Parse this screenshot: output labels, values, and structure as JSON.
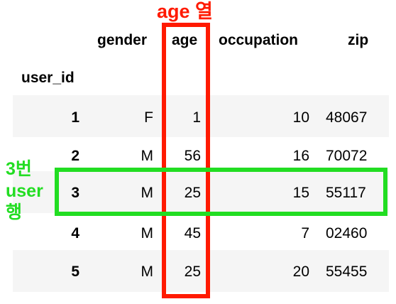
{
  "annotations": {
    "age_column": "age 열",
    "row_label": [
      "3번",
      "user",
      "행"
    ]
  },
  "colors": {
    "column_highlight": "#ff1a00",
    "row_highlight": "#22dd22",
    "stripe": "#f5f5f5"
  },
  "table": {
    "index_name": "user_id",
    "columns": [
      "gender",
      "age",
      "occupation",
      "zip"
    ],
    "rows": [
      {
        "user_id": "1",
        "gender": "F",
        "age": "1",
        "occupation": "10",
        "zip": "48067"
      },
      {
        "user_id": "2",
        "gender": "M",
        "age": "56",
        "occupation": "16",
        "zip": "70072"
      },
      {
        "user_id": "3",
        "gender": "M",
        "age": "25",
        "occupation": "15",
        "zip": "55117"
      },
      {
        "user_id": "4",
        "gender": "M",
        "age": "45",
        "occupation": "7",
        "zip": "02460"
      },
      {
        "user_id": "5",
        "gender": "M",
        "age": "25",
        "occupation": "20",
        "zip": "55455"
      }
    ]
  }
}
